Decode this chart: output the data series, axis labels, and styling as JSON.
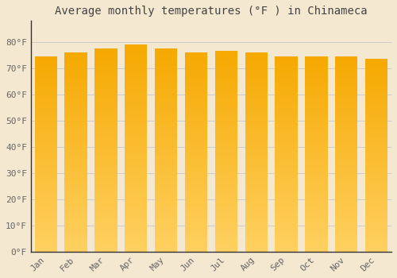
{
  "title": "Average monthly temperatures (°F ) in Chinameca",
  "months": [
    "Jan",
    "Feb",
    "Mar",
    "Apr",
    "May",
    "Jun",
    "Jul",
    "Aug",
    "Sep",
    "Oct",
    "Nov",
    "Dec"
  ],
  "values": [
    74.5,
    76.0,
    77.5,
    79.0,
    77.5,
    76.0,
    76.5,
    76.0,
    74.5,
    74.5,
    74.5,
    73.5
  ],
  "ylim": [
    0,
    88
  ],
  "yticks": [
    0,
    10,
    20,
    30,
    40,
    50,
    60,
    70,
    80
  ],
  "ytick_labels": [
    "0°F",
    "10°F",
    "20°F",
    "30°F",
    "40°F",
    "50°F",
    "60°F",
    "70°F",
    "80°F"
  ],
  "bar_color_top": "#F5A800",
  "bar_color_bottom": "#FFD060",
  "background_color": "#F5E8D0",
  "plot_bg_color": "#F5E8D0",
  "grid_color": "#CCCCCC",
  "title_color": "#444444",
  "tick_color": "#666666",
  "title_fontsize": 10,
  "tick_fontsize": 8,
  "bar_width": 0.75,
  "left_spine_color": "#333333"
}
